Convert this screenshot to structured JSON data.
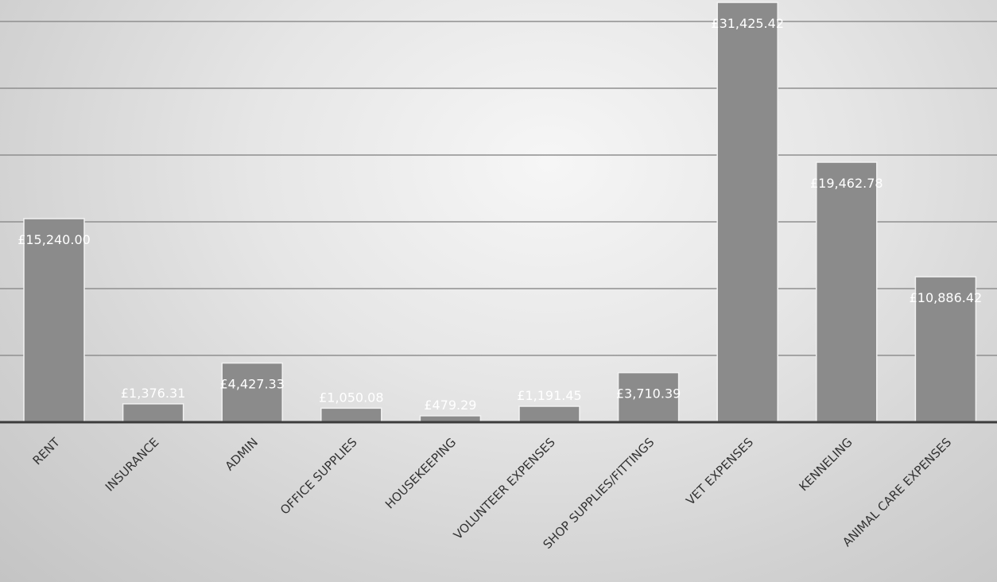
{
  "chart_data": {
    "type": "bar",
    "title": "",
    "xlabel": "",
    "ylabel": "",
    "categories": [
      "RENT",
      "INSURANCE",
      "ADMIN",
      "OFFICE SUPPLIES",
      "HOUSEKEEPING",
      "VOLUNTEER EXPENSES",
      "SHOP SUPPLIES/FITTINGS",
      "VET EXPENSES",
      "KENNELING",
      "ANIMAL CARE EXPENSES"
    ],
    "values": [
      15240.0,
      1376.31,
      4427.33,
      1050.08,
      479.29,
      1191.45,
      3710.39,
      31425.42,
      19462.78,
      10886.42
    ],
    "data_labels": [
      "£15,240.00",
      "£1,376.31",
      "£4,427.33",
      "£1,050.08",
      "£479.29",
      "£1,191.45",
      "£3,710.39",
      "£31,425.42",
      "£19,462.78",
      "£10,886.42"
    ],
    "ylim": [
      0,
      30000
    ],
    "grid": true,
    "colors": {
      "bar": "#8b8b8b",
      "bar_outline": "#f1f1f1",
      "gridline": "#8f8f8f",
      "baseline": "#3c3c3c",
      "data_label": "#ffffff",
      "tick_label": "#333333"
    }
  }
}
